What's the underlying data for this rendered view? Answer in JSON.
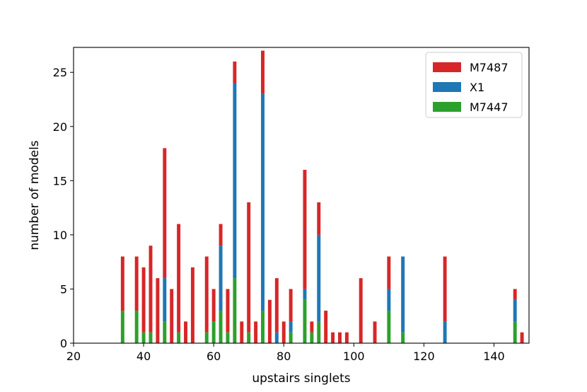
{
  "chart_data": {
    "type": "bar",
    "stacked": true,
    "title": "",
    "xlabel": "upstairs singlets",
    "ylabel": "number of models",
    "xlim": [
      20,
      150
    ],
    "ylim": [
      0,
      27.3
    ],
    "xticks": [
      20,
      40,
      60,
      80,
      100,
      120,
      140
    ],
    "yticks": [
      0,
      5,
      10,
      15,
      20,
      25
    ],
    "grid": false,
    "legend_position": "top-right",
    "bar_width": 1,
    "x": [
      34,
      38,
      40,
      42,
      44,
      46,
      48,
      50,
      52,
      54,
      58,
      60,
      62,
      64,
      66,
      68,
      70,
      72,
      74,
      76,
      78,
      80,
      82,
      86,
      88,
      90,
      92,
      94,
      96,
      98,
      102,
      106,
      110,
      114,
      126,
      146,
      148
    ],
    "series": [
      {
        "name": "M7447",
        "color": "#2ca02c",
        "values": [
          3,
          3,
          1,
          1,
          0,
          2,
          0,
          1,
          0,
          0,
          1,
          2,
          3,
          1,
          6,
          0,
          1,
          0,
          3,
          0,
          0,
          0,
          1,
          4,
          1,
          2,
          0,
          0,
          0,
          0,
          0,
          0,
          3,
          1,
          0,
          2,
          0
        ]
      },
      {
        "name": "X1",
        "color": "#1f77b4",
        "values": [
          0,
          0,
          0,
          0,
          0,
          4,
          0,
          0,
          0,
          0,
          0,
          0,
          6,
          0,
          18,
          0,
          0,
          0,
          20,
          0,
          1,
          0,
          1,
          1,
          0,
          8,
          0,
          0,
          0,
          0,
          0,
          0,
          2,
          7,
          2,
          2,
          0
        ]
      },
      {
        "name": "M7487",
        "color": "#d62728",
        "values": [
          5,
          5,
          6,
          8,
          6,
          12,
          5,
          10,
          2,
          7,
          7,
          3,
          2,
          4,
          2,
          2,
          12,
          2,
          4,
          4,
          5,
          2,
          3,
          11,
          1,
          3,
          3,
          1,
          1,
          1,
          6,
          2,
          3,
          0,
          6,
          1,
          1
        ]
      }
    ],
    "legend_order": [
      "M7487",
      "X1",
      "M7447"
    ]
  }
}
